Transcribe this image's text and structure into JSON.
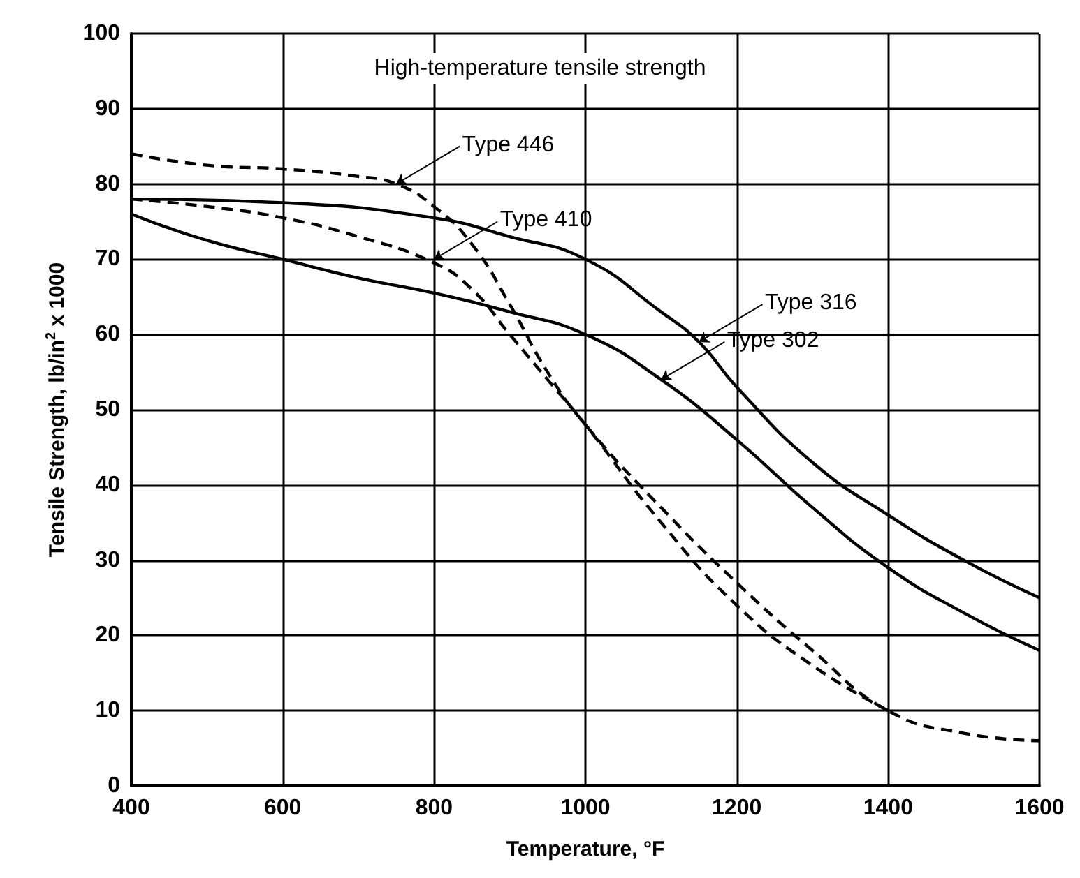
{
  "chart_data": {
    "type": "line",
    "title": "High-temperature tensile strength",
    "xlabel": "Temperature, °F",
    "ylabel": "Tensile Strength, lb/in$^{2}$ x 1000",
    "xlim": [
      400,
      1600
    ],
    "xticks": [
      400,
      600,
      800,
      1000,
      1200,
      1400,
      1600
    ],
    "ylim": [
      0,
      100
    ],
    "yticks": [
      0,
      10,
      20,
      30,
      40,
      50,
      60,
      70,
      80,
      90,
      100
    ],
    "grid": true,
    "marker": "none",
    "series": [
      {
        "color": "#000000",
        "line_style": "dashed",
        "x": [
          400,
          500,
          600,
          700,
          750,
          800,
          850,
          900,
          950,
          1000,
          1100,
          1200,
          1300,
          1400,
          1500,
          1600
        ],
        "values": [
          84,
          82.5,
          82,
          81,
          80,
          77,
          72,
          64,
          55,
          48,
          37,
          27,
          18,
          10,
          7,
          6
        ]
      },
      {
        "color": "#000000",
        "line_style": "dashed",
        "x": [
          400,
          500,
          600,
          700,
          800,
          850,
          900,
          950,
          1000,
          1100,
          1200,
          1300,
          1400
        ],
        "values": [
          78,
          77,
          75.5,
          73,
          69.5,
          66,
          60,
          54,
          48,
          35,
          24,
          16,
          10
        ]
      },
      {
        "color": "#000000",
        "line_style": "solid",
        "x": [
          400,
          600,
          800,
          900,
          1000,
          1100,
          1150,
          1200,
          1300,
          1400,
          1500,
          1600
        ],
        "values": [
          78,
          77.5,
          75.5,
          73,
          70,
          63,
          59,
          53,
          43,
          36,
          30,
          25
        ]
      },
      {
        "color": "#000000",
        "line_style": "solid",
        "x": [
          400,
          500,
          600,
          700,
          800,
          900,
          1000,
          1100,
          1200,
          1300,
          1400,
          1500,
          1600
        ],
        "values": [
          76,
          72.5,
          70,
          67.5,
          65.5,
          63,
          60,
          54,
          46,
          37,
          29,
          23,
          18
        ]
      }
    ],
    "annotations": [
      {
        "text": "Type 446",
        "x": 750,
        "y": 80
      },
      {
        "text": "Type 410",
        "x": 800,
        "y": 70
      },
      {
        "text": "Type 316",
        "x": 1150,
        "y": 59
      },
      {
        "text": "Type 302",
        "x": 1100,
        "y": 54
      }
    ]
  }
}
